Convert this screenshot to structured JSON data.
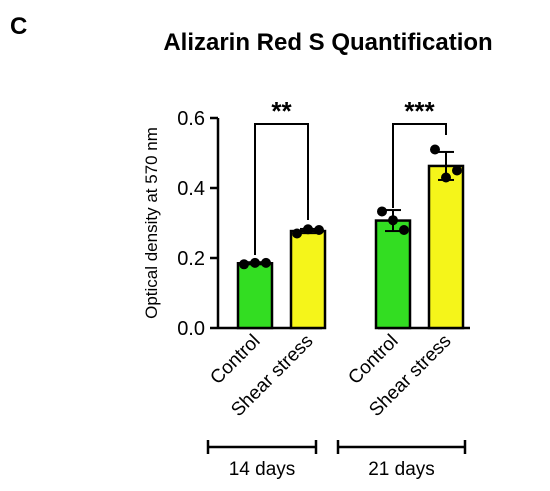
{
  "panel_label": "C",
  "chart_data": {
    "type": "bar",
    "title": "Alizarin Red S Quantification",
    "xlabel": "",
    "ylabel": "Optical density at 570 nm",
    "ylim": [
      0,
      0.6
    ],
    "yticks": [
      "0.0",
      "0.2",
      "0.4",
      "0.6"
    ],
    "grid": false,
    "categories": [
      "Control",
      "Shear stress",
      "Control",
      "Shear stress"
    ],
    "values": [
      0.185,
      0.277,
      0.307,
      0.463
    ],
    "errors": [
      0.003,
      0.006,
      0.03,
      0.04
    ],
    "points": [
      [
        0.182,
        0.186,
        0.186
      ],
      [
        0.27,
        0.282,
        0.28
      ],
      [
        0.333,
        0.308,
        0.28
      ],
      [
        0.51,
        0.43,
        0.45
      ]
    ],
    "bar_colors": [
      "#33dd22",
      "#f5f51a",
      "#33dd22",
      "#f5f51a"
    ],
    "groups": [
      {
        "label": "14 days",
        "bars": [
          0,
          1
        ]
      },
      {
        "label": "21 days",
        "bars": [
          2,
          3
        ]
      }
    ],
    "significance": [
      {
        "label": "**",
        "bars": [
          0,
          1
        ]
      },
      {
        "label": "***",
        "bars": [
          2,
          3
        ]
      }
    ]
  }
}
